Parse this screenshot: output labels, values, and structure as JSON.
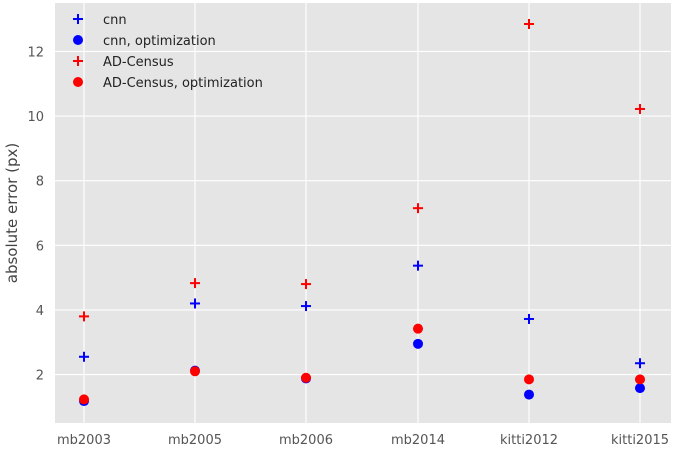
{
  "chart_data": {
    "type": "scatter",
    "categories": [
      "mb2003",
      "mb2005",
      "mb2006",
      "mb2014",
      "kitti2012",
      "kitti2015"
    ],
    "xlabel": "",
    "ylabel": "absolute error (px)",
    "ylim": [
      0.5,
      13.5
    ],
    "yticks": [
      2,
      4,
      6,
      8,
      10,
      12
    ],
    "grid": true,
    "legend_position": "top-left",
    "series": [
      {
        "name": "cnn",
        "marker": "plus",
        "color": "#0000ff",
        "values": [
          2.55,
          4.2,
          4.12,
          5.37,
          3.72,
          2.35
        ]
      },
      {
        "name": "cnn, optimization",
        "marker": "circle",
        "color": "#0000ff",
        "values": [
          1.18,
          2.12,
          1.88,
          2.95,
          1.38,
          1.58
        ]
      },
      {
        "name": "AD-Census",
        "marker": "plus",
        "color": "#ff0000",
        "values": [
          3.8,
          4.83,
          4.8,
          7.15,
          12.85,
          10.22
        ]
      },
      {
        "name": "AD-Census, optimization",
        "marker": "circle",
        "color": "#ff0000",
        "values": [
          1.23,
          2.1,
          1.9,
          3.42,
          1.85,
          1.85
        ]
      }
    ]
  }
}
